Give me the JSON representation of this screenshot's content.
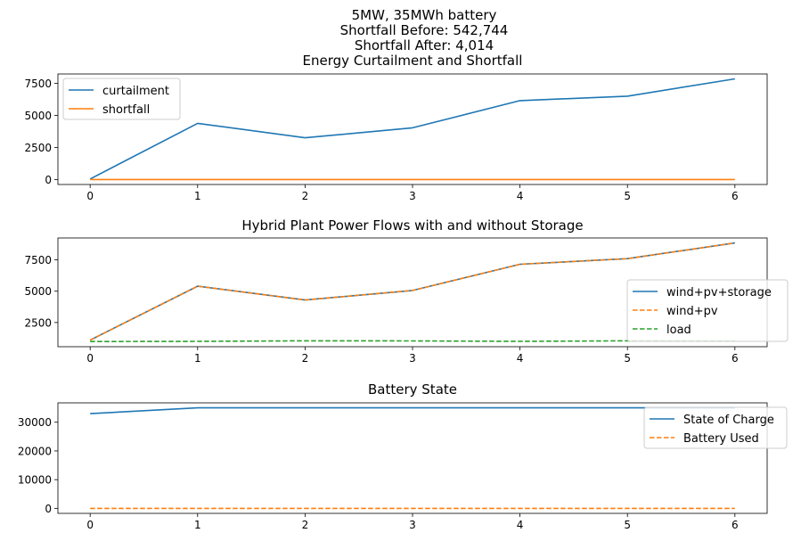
{
  "suptitle_lines": [
    "5MW, 35MWh battery",
    "Shortfall Before: 542,744",
    "Shortfall After: 4,014"
  ],
  "chart_data": [
    {
      "type": "line",
      "title": "Energy Curtailment and Shortfall",
      "x": [
        0,
        1,
        2,
        3,
        4,
        5,
        6
      ],
      "xticks": [
        0,
        1,
        2,
        3,
        4,
        5,
        6
      ],
      "yticks": [
        0,
        2500,
        5000,
        7500
      ],
      "ytick_labels": [
        "0",
        "2500",
        "5000",
        "7500"
      ],
      "xlim": [
        -0.3,
        6.3
      ],
      "ylim": [
        -390,
        8230
      ],
      "legend_position": "upper-left",
      "series": [
        {
          "name": "curtailment",
          "color": "#1f77b4",
          "dash": "solid",
          "values": [
            40,
            4380,
            3250,
            4030,
            6150,
            6500,
            7850
          ]
        },
        {
          "name": "shortfall",
          "color": "#ff7f0e",
          "dash": "solid",
          "values": [
            0,
            0,
            0,
            0,
            0,
            0,
            0
          ]
        }
      ]
    },
    {
      "type": "line",
      "title": "Hybrid Plant Power Flows with and without Storage",
      "x": [
        0,
        1,
        2,
        3,
        4,
        5,
        6
      ],
      "xticks": [
        0,
        1,
        2,
        3,
        4,
        5,
        6
      ],
      "yticks": [
        2500,
        5000,
        7500
      ],
      "ytick_labels": [
        "2500",
        "5000",
        "7500"
      ],
      "xlim": [
        -0.3,
        6.3
      ],
      "ylim": [
        570,
        9250
      ],
      "legend_position": "center-right",
      "series": [
        {
          "name": "wind+pv+storage",
          "color": "#1f77b4",
          "dash": "solid",
          "values": [
            1100,
            5400,
            4300,
            5060,
            7150,
            7600,
            8850
          ]
        },
        {
          "name": "wind+pv",
          "color": "#ff7f0e",
          "dash": "dashed",
          "values": [
            1100,
            5400,
            4300,
            5060,
            7150,
            7600,
            8850
          ]
        },
        {
          "name": "load",
          "color": "#2ca02c",
          "dash": "dashed",
          "values": [
            980,
            1000,
            1040,
            1030,
            1000,
            1040,
            1020
          ]
        }
      ]
    },
    {
      "type": "line",
      "title": "Battery State",
      "x": [
        0,
        1,
        2,
        3,
        4,
        5,
        6
      ],
      "xticks": [
        0,
        1,
        2,
        3,
        4,
        5,
        6
      ],
      "yticks": [
        0,
        10000,
        20000,
        30000
      ],
      "ytick_labels": [
        "0",
        "10000",
        "20000",
        "30000"
      ],
      "xlim": [
        -0.3,
        6.3
      ],
      "ylim": [
        -1750,
        36750
      ],
      "legend_position": "upper-right",
      "series": [
        {
          "name": "State of Charge",
          "color": "#1f77b4",
          "dash": "solid",
          "values": [
            33000,
            35000,
            35000,
            35000,
            35000,
            35000,
            35000
          ]
        },
        {
          "name": "Battery Used",
          "color": "#ff7f0e",
          "dash": "dashed",
          "values": [
            0,
            0,
            0,
            0,
            0,
            0,
            0
          ]
        }
      ]
    }
  ]
}
